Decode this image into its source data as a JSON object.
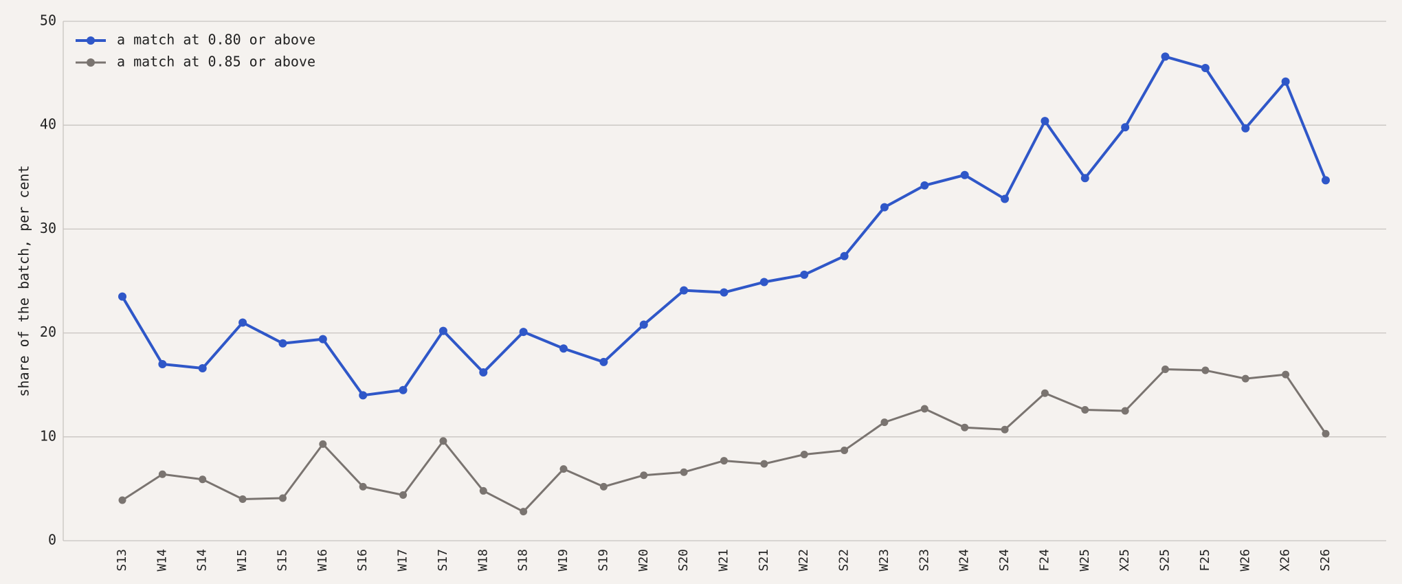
{
  "chart_data": {
    "type": "line",
    "y_label": "share of the batch, per cent",
    "categories": [
      "S13",
      "W14",
      "S14",
      "W15",
      "S15",
      "W16",
      "S16",
      "W17",
      "S17",
      "W18",
      "S18",
      "W19",
      "S19",
      "W20",
      "S20",
      "W21",
      "S21",
      "W22",
      "S22",
      "W23",
      "S23",
      "W24",
      "S24",
      "F24",
      "W25",
      "X25",
      "S25",
      "F25",
      "W26",
      "X26",
      "S26"
    ],
    "series": [
      {
        "name": "a match at 0.80 or above",
        "color": "#2f57c8",
        "values": [
          23.5,
          17.0,
          16.6,
          21.0,
          19.0,
          19.4,
          14.0,
          14.5,
          20.2,
          16.2,
          20.1,
          18.5,
          17.2,
          20.8,
          24.1,
          23.9,
          24.9,
          25.6,
          27.4,
          32.1,
          34.2,
          35.2,
          32.9,
          40.4,
          34.9,
          39.8,
          46.6,
          45.5,
          39.7,
          44.2,
          34.7
        ]
      },
      {
        "name": "a match at 0.85 or above",
        "color": "#7a7470",
        "values": [
          3.9,
          6.4,
          5.9,
          4.0,
          4.1,
          9.3,
          5.2,
          4.4,
          9.6,
          4.8,
          2.8,
          6.9,
          5.2,
          6.3,
          6.6,
          7.7,
          7.4,
          8.3,
          8.7,
          11.4,
          12.7,
          10.9,
          10.7,
          14.2,
          12.6,
          12.5,
          16.5,
          16.4,
          15.6,
          16.0,
          10.3
        ]
      }
    ],
    "ylim": [
      0,
      50
    ],
    "yticks": [
      0,
      10,
      20,
      30,
      40,
      50
    ],
    "grid": true,
    "legend": "upper left"
  }
}
